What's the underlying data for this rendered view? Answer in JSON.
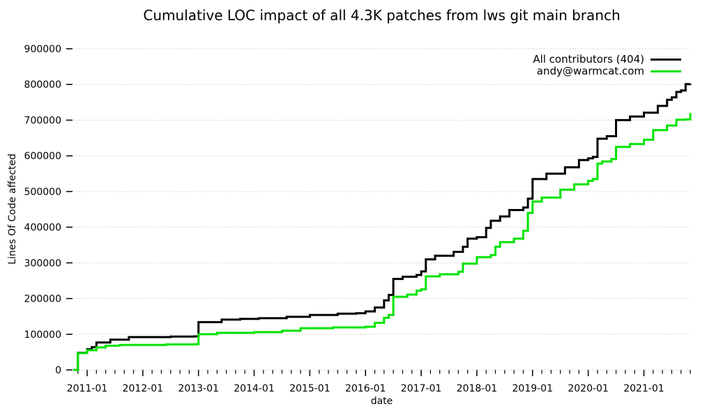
{
  "chart_data": {
    "type": "line",
    "title": "Cumulative LOC impact of all 4.3K patches from lws git main branch",
    "xlabel": "date",
    "ylabel": "Lines Of Code affected",
    "xlim": [
      "2010-10",
      "2021-11"
    ],
    "ylim": [
      0,
      900000
    ],
    "y_ticks": [
      0,
      100000,
      200000,
      300000,
      400000,
      500000,
      600000,
      700000,
      800000,
      900000
    ],
    "x_major_ticks": [
      "2011-01",
      "2012-01",
      "2013-01",
      "2014-01",
      "2015-01",
      "2016-01",
      "2017-01",
      "2018-01",
      "2019-01",
      "2020-01",
      "2021-01"
    ],
    "x_minor_tick_interval_months": 2,
    "grid": "horizontal-dotted",
    "legend_position": "top-right-inside",
    "interpolation": "step-after",
    "colors": {
      "grid": "#c9c9c9",
      "axis": "#000000",
      "background": "#ffffff"
    },
    "series": [
      {
        "name": "All contributors (404)",
        "color": "#000000",
        "points": [
          [
            "2010-10",
            0
          ],
          [
            "2010-11",
            48000
          ],
          [
            "2011-01",
            58000
          ],
          [
            "2011-02",
            64000
          ],
          [
            "2011-03",
            77000
          ],
          [
            "2011-06",
            85000
          ],
          [
            "2011-10",
            92000
          ],
          [
            "2012-07",
            93500
          ],
          [
            "2012-12",
            94000
          ],
          [
            "2013-01",
            134000
          ],
          [
            "2013-06",
            141000
          ],
          [
            "2013-10",
            143000
          ],
          [
            "2014-02",
            145000
          ],
          [
            "2014-08",
            149000
          ],
          [
            "2015-01",
            154000
          ],
          [
            "2015-07",
            157500
          ],
          [
            "2015-11",
            159000
          ],
          [
            "2016-01",
            164000
          ],
          [
            "2016-03",
            175000
          ],
          [
            "2016-05",
            195000
          ],
          [
            "2016-06",
            210000
          ],
          [
            "2016-07",
            255000
          ],
          [
            "2016-09",
            261000
          ],
          [
            "2016-12",
            266000
          ],
          [
            "2017-01",
            276000
          ],
          [
            "2017-02",
            310000
          ],
          [
            "2017-04",
            320000
          ],
          [
            "2017-08",
            331000
          ],
          [
            "2017-10",
            345000
          ],
          [
            "2017-11",
            368000
          ],
          [
            "2018-01",
            372000
          ],
          [
            "2018-03",
            398000
          ],
          [
            "2018-04",
            418000
          ],
          [
            "2018-06",
            430000
          ],
          [
            "2018-08",
            448000
          ],
          [
            "2018-11",
            455000
          ],
          [
            "2018-12",
            480000
          ],
          [
            "2019-01",
            535000
          ],
          [
            "2019-04",
            550000
          ],
          [
            "2019-08",
            568000
          ],
          [
            "2019-11",
            588000
          ],
          [
            "2020-01",
            593000
          ],
          [
            "2020-02",
            597000
          ],
          [
            "2020-03",
            648000
          ],
          [
            "2020-05",
            655000
          ],
          [
            "2020-07",
            700000
          ],
          [
            "2020-10",
            710000
          ],
          [
            "2021-01",
            721000
          ],
          [
            "2021-04",
            740000
          ],
          [
            "2021-06",
            757000
          ],
          [
            "2021-07",
            764000
          ],
          [
            "2021-08",
            779000
          ],
          [
            "2021-09",
            783000
          ],
          [
            "2021-10",
            801000
          ],
          [
            "2021-11",
            802000
          ]
        ]
      },
      {
        "name": "andy@warmcat.com",
        "color": "#00e400",
        "points": [
          [
            "2010-10",
            0
          ],
          [
            "2010-11",
            47000
          ],
          [
            "2011-01",
            55000
          ],
          [
            "2011-03",
            63000
          ],
          [
            "2011-05",
            68000
          ],
          [
            "2011-08",
            70000
          ],
          [
            "2012-06",
            71500
          ],
          [
            "2012-12",
            72000
          ],
          [
            "2013-01",
            100000
          ],
          [
            "2013-05",
            104000
          ],
          [
            "2014-01",
            106000
          ],
          [
            "2014-07",
            110000
          ],
          [
            "2014-11",
            117000
          ],
          [
            "2015-06",
            119000
          ],
          [
            "2016-01",
            121000
          ],
          [
            "2016-03",
            132000
          ],
          [
            "2016-05",
            146000
          ],
          [
            "2016-06",
            154000
          ],
          [
            "2016-07",
            205000
          ],
          [
            "2016-10",
            211000
          ],
          [
            "2016-12",
            222000
          ],
          [
            "2017-01",
            226000
          ],
          [
            "2017-02",
            262000
          ],
          [
            "2017-05",
            268000
          ],
          [
            "2017-09",
            275000
          ],
          [
            "2017-10",
            298000
          ],
          [
            "2018-01",
            316000
          ],
          [
            "2018-04",
            322000
          ],
          [
            "2018-05",
            345000
          ],
          [
            "2018-06",
            358000
          ],
          [
            "2018-09",
            368000
          ],
          [
            "2018-11",
            390000
          ],
          [
            "2018-12",
            440000
          ],
          [
            "2019-01",
            472000
          ],
          [
            "2019-03",
            483000
          ],
          [
            "2019-07",
            505000
          ],
          [
            "2019-10",
            520000
          ],
          [
            "2020-01",
            530000
          ],
          [
            "2020-02",
            535000
          ],
          [
            "2020-03",
            578000
          ],
          [
            "2020-04",
            584000
          ],
          [
            "2020-06",
            591000
          ],
          [
            "2020-07",
            625000
          ],
          [
            "2020-10",
            633000
          ],
          [
            "2021-01",
            645000
          ],
          [
            "2021-03",
            672000
          ],
          [
            "2021-06",
            685000
          ],
          [
            "2021-08",
            701000
          ],
          [
            "2021-10",
            702000
          ],
          [
            "2021-11",
            720000
          ]
        ]
      }
    ]
  }
}
